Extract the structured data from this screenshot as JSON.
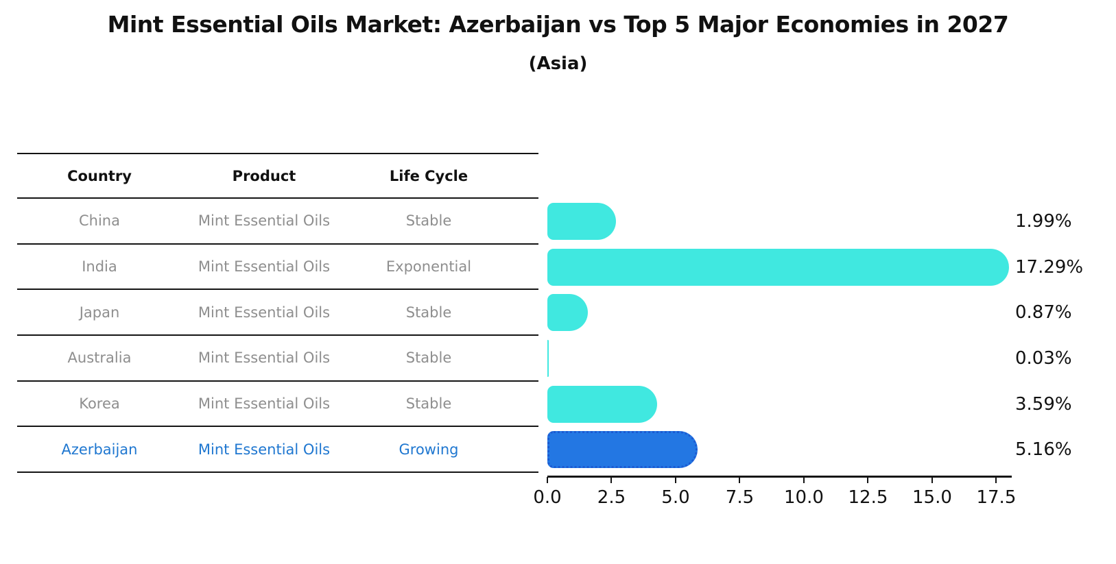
{
  "header": {
    "title": "Mint Essential Oils Market: Azerbaijan vs Top 5 Major Economies in 2027",
    "subtitle": "(Asia)"
  },
  "table": {
    "columns": [
      "Country",
      "Product",
      "Life Cycle"
    ],
    "rows": [
      {
        "country": "China",
        "product": "Mint Essential Oils",
        "life_cycle": "Stable",
        "highlight": false
      },
      {
        "country": "India",
        "product": "Mint Essential Oils",
        "life_cycle": "Exponential",
        "highlight": false
      },
      {
        "country": "Japan",
        "product": "Mint Essential Oils",
        "life_cycle": "Stable",
        "highlight": false
      },
      {
        "country": "Australia",
        "product": "Mint Essential Oils",
        "life_cycle": "Stable",
        "highlight": false
      },
      {
        "country": "Korea",
        "product": "Mint Essential Oils",
        "life_cycle": "Stable",
        "highlight": false
      },
      {
        "country": "Azerbaijan",
        "product": "Mint Essential Oils",
        "life_cycle": "Growing",
        "highlight": true
      }
    ]
  },
  "chart_data": {
    "type": "bar",
    "orientation": "horizontal",
    "title": "Mint Essential Oils Market: Azerbaijan vs Top 5 Major Economies in 2027",
    "subtitle": "(Asia)",
    "categories": [
      "China",
      "India",
      "Japan",
      "Australia",
      "Korea",
      "Azerbaijan"
    ],
    "values": [
      1.99,
      17.29,
      0.87,
      0.03,
      3.59,
      5.16
    ],
    "value_labels": [
      "1.99%",
      "17.29%",
      "0.87%",
      "0.03%",
      "3.59%",
      "5.16%"
    ],
    "x_ticks": [
      0.0,
      2.5,
      5.0,
      7.5,
      10.0,
      12.5,
      15.0,
      17.5
    ],
    "x_tick_labels": [
      "0.0",
      "2.5",
      "5.0",
      "7.5",
      "10.0",
      "12.5",
      "15.0",
      "17.5"
    ],
    "xlim": [
      0,
      18.05
    ],
    "grid": false,
    "legend": false,
    "highlight_index": 5,
    "bar_color": "#40e8e0",
    "highlight_bar_color": "#2377e3",
    "highlight_bar_border_color": "#1b5ad2",
    "highlight_text_color": "#1f77d0",
    "row_text_color": "#8e8e8e",
    "axis_color": "#141414"
  }
}
